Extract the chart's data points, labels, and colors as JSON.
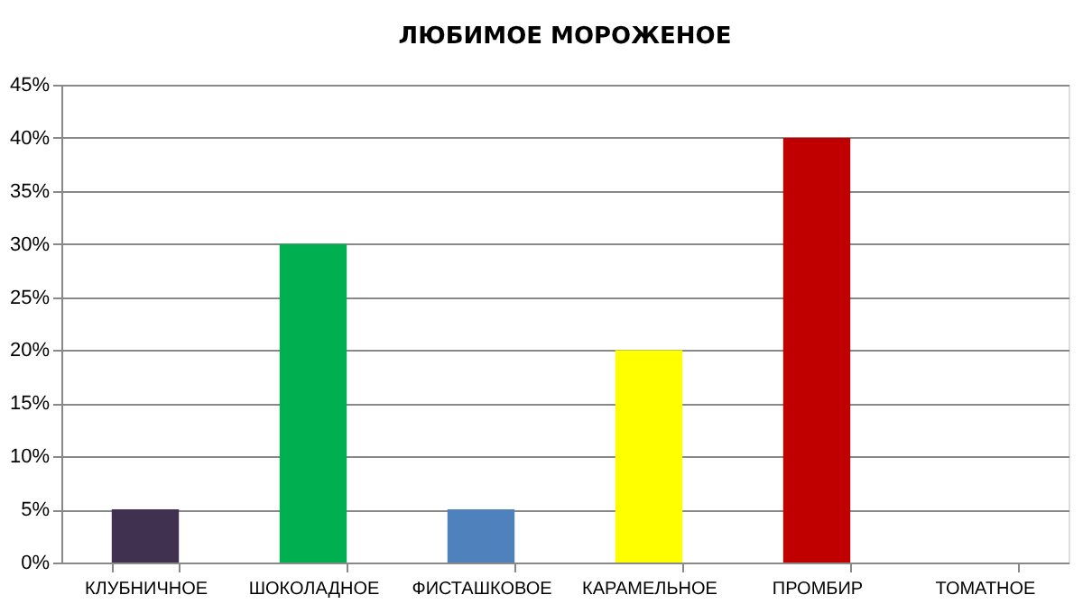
{
  "chart_data": {
    "type": "bar",
    "title": "ЛЮБИМОЕ   МОРОЖЕНОЕ",
    "categories": [
      "КЛУБНИЧНОЕ",
      "ШОКОЛАДНОЕ",
      "ФИСТАШКОВОЕ",
      "КАРАМЕЛЬНОЕ",
      "ПРОМБИР",
      "ТОМАТНОЕ"
    ],
    "values": [
      5,
      30,
      5,
      20,
      40,
      0
    ],
    "colors": [
      "#403151",
      "#00b050",
      "#4f81bd",
      "#ffff00",
      "#c00000",
      "#c0504d"
    ],
    "ylim": [
      0,
      45
    ],
    "yticks": [
      {
        "value": 0,
        "label": "0%"
      },
      {
        "value": 5,
        "label": "5%"
      },
      {
        "value": 10,
        "label": "10%"
      },
      {
        "value": 15,
        "label": "15%"
      },
      {
        "value": 20,
        "label": "20%"
      },
      {
        "value": 25,
        "label": "25%"
      },
      {
        "value": 30,
        "label": "30%"
      },
      {
        "value": 35,
        "label": "35%"
      },
      {
        "value": 40,
        "label": "40%"
      },
      {
        "value": 45,
        "label": "45%"
      }
    ],
    "grid": "y",
    "legend": false
  }
}
